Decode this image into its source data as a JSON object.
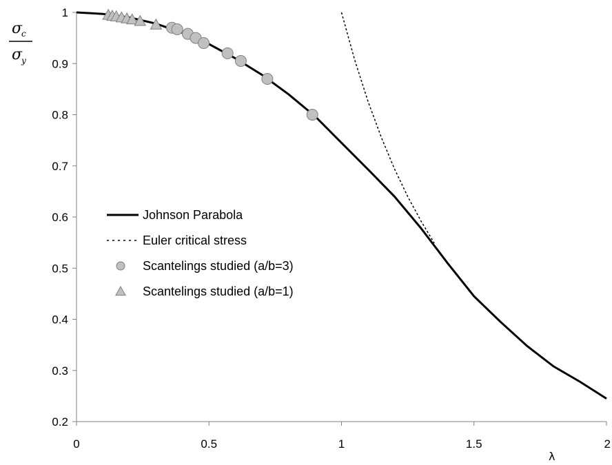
{
  "chart_data": {
    "type": "scatter",
    "xlabel": "λ",
    "ylabel": {
      "numerator": "σ",
      "numerator_sub": "c",
      "denominator": "σ",
      "denominator_sub": "y"
    },
    "xlim": [
      0,
      2
    ],
    "ylim": [
      0.2,
      1
    ],
    "x_ticks": [
      "0",
      "0.5",
      "1",
      "1.5",
      "2"
    ],
    "y_ticks": [
      "0.2",
      "0.3",
      "0.4",
      "0.5",
      "0.6",
      "0.7",
      "0.8",
      "0.9",
      "1"
    ],
    "grid": false,
    "legend_position": "center-left",
    "series": [
      {
        "name": "Johnson Parabola",
        "kind": "line",
        "style": "solid",
        "color": "#000000",
        "x": [
          0,
          0.1,
          0.2,
          0.3,
          0.4,
          0.5,
          0.6,
          0.7,
          0.8,
          0.9,
          1.0,
          1.1,
          1.2,
          1.3,
          1.4,
          1.5,
          1.6,
          1.7,
          1.8,
          1.9,
          2.0
        ],
        "y": [
          1.0,
          0.997,
          0.99,
          0.978,
          0.96,
          0.938,
          0.91,
          0.878,
          0.84,
          0.797,
          0.745,
          0.693,
          0.64,
          0.578,
          0.51,
          0.445,
          0.395,
          0.348,
          0.308,
          0.278,
          0.245
        ]
      },
      {
        "name": "Euler critical stress",
        "kind": "line",
        "style": "dashed",
        "color": "#000000",
        "x": [
          1.0,
          1.05,
          1.1,
          1.15,
          1.2,
          1.25,
          1.3,
          1.35
        ],
        "y": [
          1.0,
          0.907,
          0.826,
          0.756,
          0.694,
          0.64,
          0.592,
          0.549
        ]
      },
      {
        "name": "Scantelings studied (a/b=3)",
        "kind": "scatter",
        "marker": "circle",
        "color": "#c0c0c0",
        "x": [
          0.36,
          0.38,
          0.42,
          0.45,
          0.48,
          0.57,
          0.62,
          0.72,
          0.89
        ],
        "y": [
          0.97,
          0.967,
          0.958,
          0.95,
          0.94,
          0.92,
          0.905,
          0.87,
          0.8
        ]
      },
      {
        "name": "Scantelings studied (a/b=1)",
        "kind": "scatter",
        "marker": "triangle",
        "color": "#c0c0c0",
        "x": [
          0.12,
          0.135,
          0.15,
          0.17,
          0.19,
          0.21,
          0.24,
          0.3
        ],
        "y": [
          0.995,
          0.993,
          0.992,
          0.99,
          0.988,
          0.986,
          0.983,
          0.976
        ]
      }
    ]
  }
}
